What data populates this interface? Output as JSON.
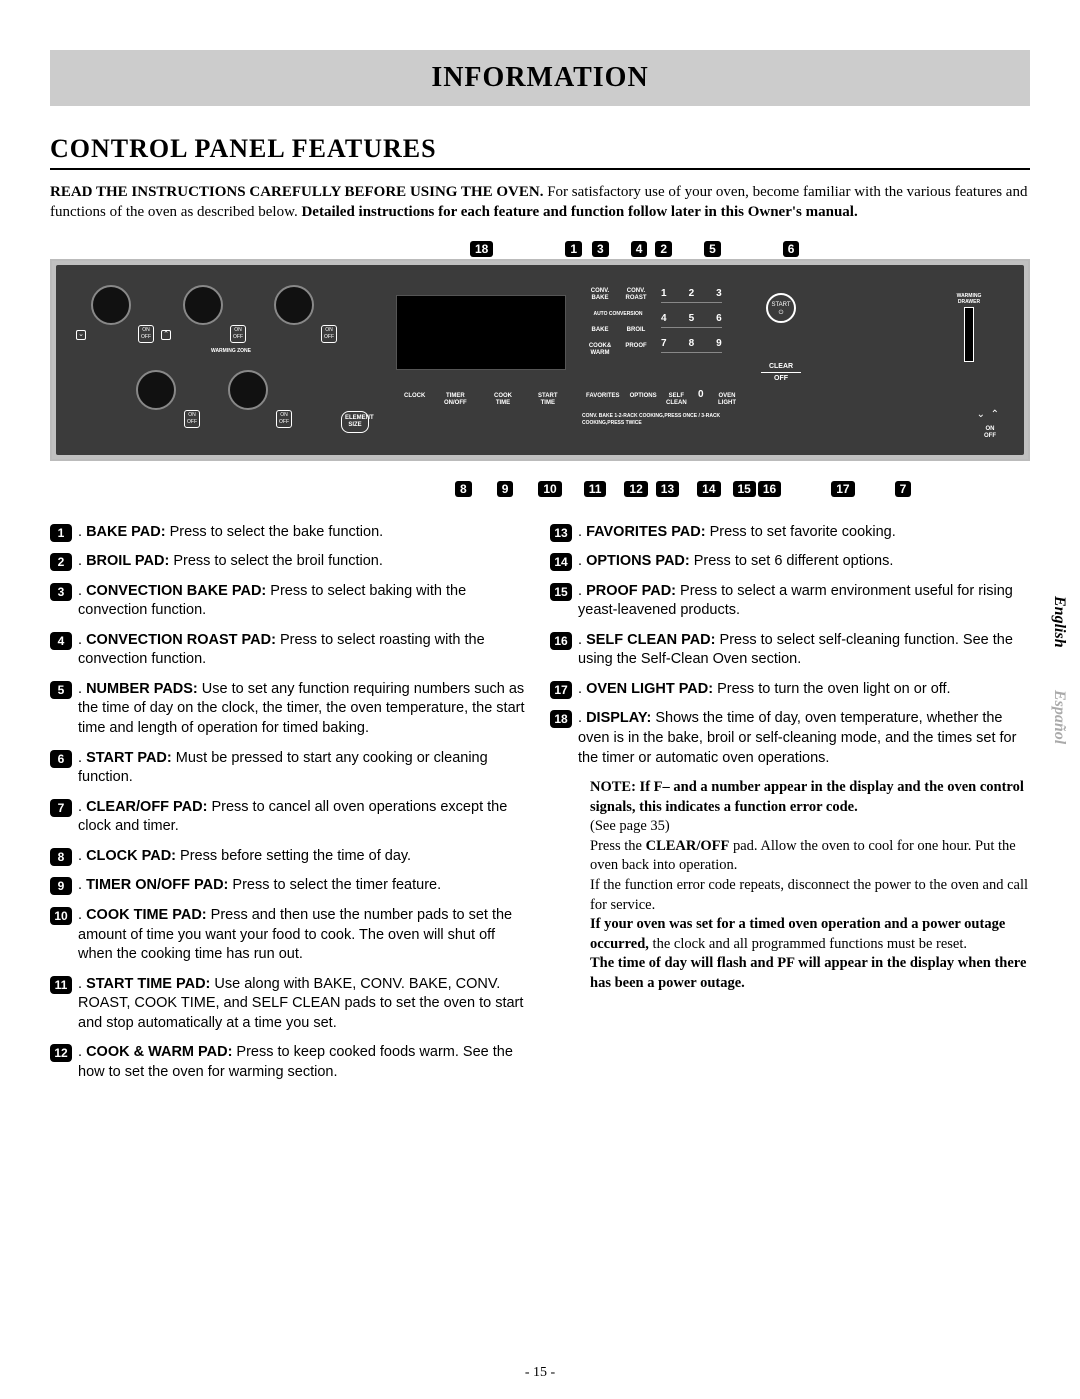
{
  "header": {
    "title": "INFORMATION"
  },
  "section": {
    "title": "CONTROL PANEL FEATURES"
  },
  "intro": {
    "bold1": "READ THE INSTRUCTIONS CAREFULLY BEFORE USING THE OVEN.",
    "plain": " For satisfactory use of your oven, become familiar with the various features and functions of the oven as described below. ",
    "bold2": "Detailed instructions for each feature and function follow later in this Owner's manual."
  },
  "calloutsTop": [
    "18",
    "1",
    "3",
    "4",
    "2",
    "5",
    "6"
  ],
  "calloutsBottom": [
    "8",
    "9",
    "10",
    "11",
    "12",
    "13",
    "14",
    "15",
    "16",
    "17",
    "7"
  ],
  "panel": {
    "knob_onoff": "ON\nOFF",
    "warming_zone": "WARMING ZONE",
    "element_size": "ELEMENT\nSIZE",
    "clock": "CLOCK",
    "timer": "TIMER\nON/OFF",
    "cooktime": "COOK\nTIME",
    "starttime": "START\nTIME",
    "convbake": "CONV.\nBAKE",
    "convroast": "CONV.\nROAST",
    "autoconv": "AUTO CONVERSION",
    "bake": "BAKE",
    "broil": "BROIL",
    "cookwarm": "COOK&\nWARM",
    "proof": "PROOF",
    "favorites": "FAVORITES",
    "options": "OPTIONS",
    "selfclean": "SELF\nCLEAN",
    "ovenlight": "OVEN\nLIGHT",
    "start": "START",
    "clear": "CLEAR",
    "off": "OFF",
    "warming_drawer": "WARMING\nDRAWER",
    "onoff_right": "ON\nOFF",
    "footer": "CONV. BAKE  1-2-RACK COOKING,PRESS ONCE / 3-RACK COOKING,PRESS TWICE",
    "numrows": [
      [
        "1",
        "2",
        "3"
      ],
      [
        "4",
        "5",
        "6"
      ],
      [
        "7",
        "8",
        "9"
      ],
      [
        "0"
      ]
    ]
  },
  "features": {
    "left": [
      {
        "n": "1",
        "lead": "BAKE PAD:",
        "body": " Press to select the bake function."
      },
      {
        "n": "2",
        "lead": "BROIL PAD:",
        "body": " Press to select the broil function."
      },
      {
        "n": "3",
        "lead": "CONVECTION BAKE PAD:",
        "body": " Press to select baking with the convection function."
      },
      {
        "n": "4",
        "lead": "CONVECTION ROAST PAD:",
        "body": " Press to select roasting with the convection function."
      },
      {
        "n": "5",
        "lead": "NUMBER PADS:",
        "body": " Use to set any function requiring numbers such as the time of day on the clock, the timer, the oven temperature, the start time and length of operation for timed baking."
      },
      {
        "n": "6",
        "lead": "START PAD:",
        "body": " Must be pressed to start any cooking or cleaning function."
      },
      {
        "n": "7",
        "lead": "CLEAR/OFF PAD:",
        "body": " Press to cancel all oven operations except the clock and timer."
      },
      {
        "n": "8",
        "lead": "CLOCK PAD:",
        "body": " Press before setting the time of day."
      },
      {
        "n": "9",
        "lead": "TIMER ON/OFF PAD:",
        "body": " Press to select the timer feature."
      },
      {
        "n": "10",
        "lead": "COOK TIME PAD:",
        "body": " Press and then use the number pads to set the amount of time you want your food to cook. The oven will shut off when the cooking time has run out."
      },
      {
        "n": "11",
        "lead": "START TIME PAD:",
        "body": " Use along with BAKE, CONV. BAKE, CONV. ROAST, COOK TIME, and SELF CLEAN pads to set the oven to start and stop automatically at a time you set."
      },
      {
        "n": "12",
        "lead": "COOK & WARM PAD:",
        "body": " Press to keep cooked foods warm. See the how to set the oven for warming section."
      }
    ],
    "right": [
      {
        "n": "13",
        "lead": "FAVORITES PAD:",
        "body": " Press to set favorite cooking."
      },
      {
        "n": "14",
        "lead": "OPTIONS PAD:",
        "body": " Press to set 6 different options."
      },
      {
        "n": "15",
        "lead": "PROOF PAD:",
        "body": " Press to select a warm environment useful for rising yeast-leavened products."
      },
      {
        "n": "16",
        "lead": "SELF CLEAN PAD:",
        "body": " Press to select self-cleaning function. See the using the Self-Clean Oven section."
      },
      {
        "n": "17",
        "lead": "OVEN LIGHT PAD:",
        "body": " Press to turn the oven light on or off."
      },
      {
        "n": "18",
        "lead": "DISPLAY:",
        "body": " Shows the time of day, oven temperature, whether the oven is in the bake, broil or self-cleaning mode, and the times set for the timer or automatic oven operations."
      }
    ]
  },
  "note": {
    "label": "NOTE:",
    "l1": " If F– and a number appear in the display and the oven control signals, this indicates a function error code.",
    "l2": "(See page 35)",
    "l3a": "Press the ",
    "l3b": "CLEAR/OFF",
    "l3c": " pad. Allow the oven to cool for one hour. Put the oven back into operation.",
    "l4": "If the function error code repeats, disconnect the power to the oven and call for service.",
    "l5a": "If your oven was set for a timed oven operation and a power outage occurred,",
    "l5b": " the clock and all programmed functions must be reset.",
    "l6": "The time of day will flash and PF will appear in the display when there has been a power outage."
  },
  "tabs": {
    "en": "English",
    "es": "Español"
  },
  "page": "- 15 -"
}
